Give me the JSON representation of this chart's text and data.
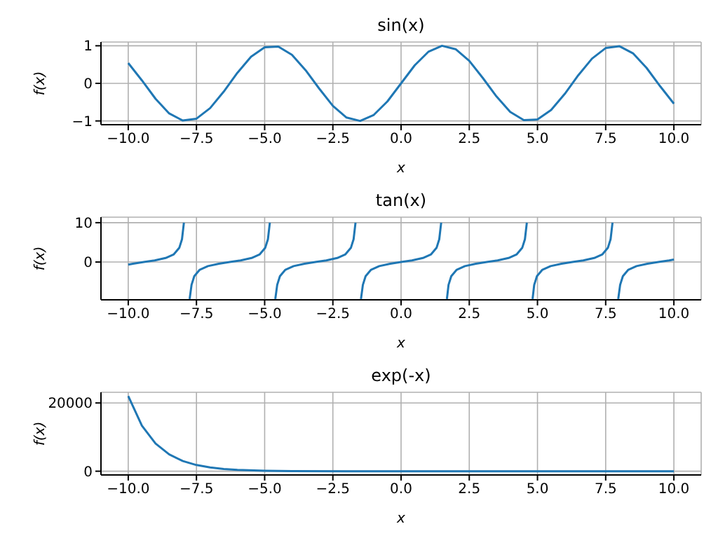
{
  "chart_data": [
    {
      "type": "line",
      "title": "sin(x)",
      "xlabel": "x",
      "ylabel": "f(x)",
      "color": "#1f77b4",
      "grid": true,
      "marker": "none",
      "line_style": "solid",
      "x": [
        -10,
        -9.5,
        -9,
        -8.5,
        -8,
        -7.5,
        -7,
        -6.5,
        -6,
        -5.5,
        -5,
        -4.5,
        -4,
        -3.5,
        -3,
        -2.5,
        -2,
        -1.5,
        -1,
        -0.5,
        0,
        0.5,
        1,
        1.5,
        2,
        2.5,
        3,
        3.5,
        4,
        4.5,
        5,
        5.5,
        6,
        6.5,
        7,
        7.5,
        8,
        8.5,
        9,
        9.5,
        10
      ],
      "values": [
        0.54,
        0.08,
        -0.41,
        -0.8,
        -0.99,
        -0.94,
        -0.66,
        -0.22,
        0.28,
        0.71,
        0.96,
        0.98,
        0.76,
        0.35,
        -0.14,
        -0.6,
        -0.91,
        -1.0,
        -0.84,
        -0.48,
        0,
        0.48,
        0.84,
        1.0,
        0.91,
        0.6,
        0.14,
        -0.35,
        -0.76,
        -0.98,
        -0.96,
        -0.71,
        -0.28,
        0.22,
        0.66,
        0.94,
        0.99,
        0.8,
        0.41,
        -0.08,
        -0.54
      ],
      "xlim": [
        -11,
        11
      ],
      "xticks": [
        {
          "value": -10,
          "label": "−10.0"
        },
        {
          "value": -7.5,
          "label": "−7.5"
        },
        {
          "value": -5,
          "label": "−5.0"
        },
        {
          "value": -2.5,
          "label": "−2.5"
        },
        {
          "value": 0,
          "label": "0.0"
        },
        {
          "value": 2.5,
          "label": "2.5"
        },
        {
          "value": 5,
          "label": "5.0"
        },
        {
          "value": 7.5,
          "label": "7.5"
        },
        {
          "value": 10,
          "label": "10.0"
        }
      ],
      "ylim": [
        -1.1,
        1.1
      ],
      "yticks": [
        {
          "value": -1,
          "label": "−1"
        },
        0,
        1
      ]
    },
    {
      "type": "line",
      "title": "tan(x)",
      "xlabel": "x",
      "ylabel": "f(x)",
      "color": "#1f77b4",
      "grid": true,
      "marker": "none",
      "line_style": "solid",
      "x": [
        -10,
        -9.83,
        -9.43,
        -9.03,
        -8.63,
        -8.33,
        -8.13,
        -8.03,
        -7.96,
        -7.85,
        -7.75,
        -7.68,
        -7.58,
        -7.38,
        -7.08,
        -6.68,
        -6.28,
        -5.88,
        -5.48,
        -5.18,
        -4.98,
        -4.88,
        -4.81,
        -4.71,
        -4.61,
        -4.54,
        -4.44,
        -4.24,
        -3.94,
        -3.54,
        -3.14,
        -2.74,
        -2.34,
        -2.04,
        -1.84,
        -1.74,
        -1.67,
        -1.57,
        -1.47,
        -1.4,
        -1.3,
        -1.1,
        -0.8,
        -0.4,
        0,
        0.4,
        0.8,
        1.1,
        1.3,
        1.4,
        1.47,
        1.57,
        1.68,
        1.74,
        1.84,
        2.04,
        2.34,
        2.74,
        3.14,
        3.54,
        3.94,
        4.24,
        4.44,
        4.54,
        4.61,
        4.71,
        4.82,
        4.88,
        4.98,
        5.18,
        5.48,
        5.88,
        6.28,
        6.68,
        7.08,
        7.38,
        7.58,
        7.68,
        7.75,
        7.85,
        7.96,
        8.03,
        8.13,
        8.33,
        8.63,
        9.03,
        9.43,
        9.83,
        10
      ],
      "values": [
        -0.65,
        -0.42,
        0,
        0.42,
        1.03,
        1.96,
        3.6,
        5.8,
        10,
        null,
        -9.4,
        -5.8,
        -3.6,
        -1.96,
        -1.03,
        -0.42,
        0,
        0.42,
        1.03,
        1.96,
        3.6,
        5.8,
        10,
        null,
        -9.4,
        -5.8,
        -3.6,
        -1.96,
        -1.03,
        -0.42,
        0,
        0.42,
        1.03,
        1.96,
        3.6,
        5.8,
        10,
        null,
        -9.4,
        -5.8,
        -3.6,
        -1.96,
        -1.03,
        -0.42,
        0,
        0.42,
        1.03,
        1.96,
        3.6,
        5.8,
        10,
        null,
        -9.4,
        -5.8,
        -3.6,
        -1.96,
        -1.03,
        -0.42,
        0,
        0.42,
        1.03,
        1.96,
        3.6,
        5.8,
        10,
        null,
        -9.4,
        -5.8,
        -3.6,
        -1.96,
        -1.03,
        -0.42,
        0,
        0.42,
        1.03,
        1.96,
        3.6,
        5.8,
        10,
        null,
        -9.4,
        -5.8,
        -3.6,
        -1.96,
        -1.03,
        -0.42,
        0,
        0.42,
        0.65
      ],
      "xlim": [
        -11,
        11
      ],
      "xticks": [
        {
          "value": -10,
          "label": "−10.0"
        },
        {
          "value": -7.5,
          "label": "−7.5"
        },
        {
          "value": -5,
          "label": "−5.0"
        },
        {
          "value": -2.5,
          "label": "−2.5"
        },
        {
          "value": 0,
          "label": "0.0"
        },
        {
          "value": 2.5,
          "label": "2.5"
        },
        {
          "value": 5,
          "label": "5.0"
        },
        {
          "value": 7.5,
          "label": "7.5"
        },
        {
          "value": 10,
          "label": "10.0"
        }
      ],
      "ylim": [
        -9.6,
        11.4
      ],
      "yticks": [
        0,
        10
      ]
    },
    {
      "type": "line",
      "title": "exp(-x)",
      "xlabel": "x",
      "ylabel": "f(x)",
      "color": "#1f77b4",
      "grid": true,
      "marker": "none",
      "line_style": "solid",
      "x": [
        -10,
        -9.5,
        -9,
        -8.5,
        -8,
        -7.5,
        -7,
        -6.5,
        -6,
        -5,
        -4,
        -2,
        0,
        5,
        10
      ],
      "values": [
        22026,
        13360,
        8103,
        4915,
        2981,
        1808,
        1097,
        665,
        403,
        150,
        50,
        0,
        0,
        0,
        0
      ],
      "xlim": [
        -11,
        11
      ],
      "xticks": [
        {
          "value": -10,
          "label": "−10.0"
        },
        {
          "value": -7.5,
          "label": "−7.5"
        },
        {
          "value": -5,
          "label": "−5.0"
        },
        {
          "value": -2.5,
          "label": "−2.5"
        },
        {
          "value": 0,
          "label": "0.0"
        },
        {
          "value": 2.5,
          "label": "2.5"
        },
        {
          "value": 5,
          "label": "5.0"
        },
        {
          "value": 7.5,
          "label": "7.5"
        },
        {
          "value": 10,
          "label": "10.0"
        }
      ],
      "ylim": [
        -1101,
        23127
      ],
      "yticks": [
        0,
        20000
      ]
    }
  ]
}
